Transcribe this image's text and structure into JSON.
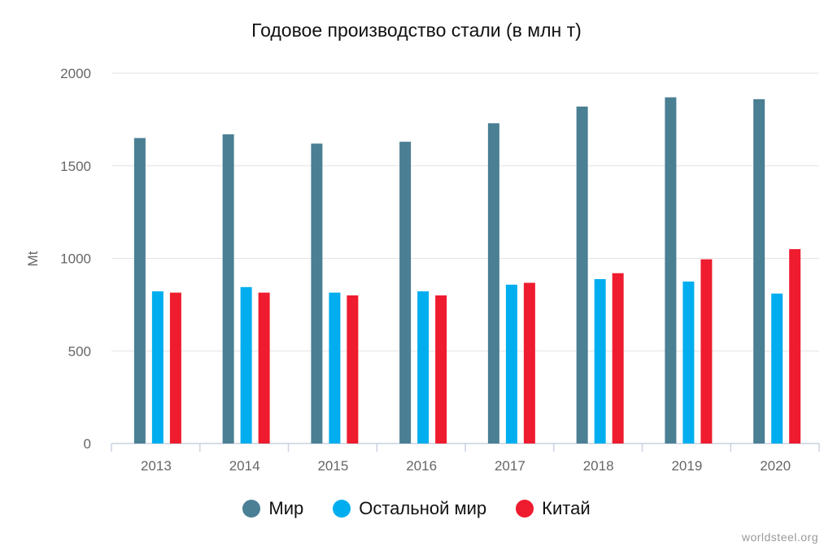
{
  "chart_data": {
    "type": "bar",
    "title": "Годовое производство стали (в млн т)",
    "xlabel": "",
    "ylabel": "Mt",
    "ylim": [
      0,
      2000
    ],
    "yticks": [
      "0",
      "500",
      "1000",
      "1500",
      "2000"
    ],
    "grid": true,
    "legend_position": "bottom-center",
    "categories": [
      "2013",
      "2014",
      "2015",
      "2016",
      "2017",
      "2018",
      "2019",
      "2020"
    ],
    "series": [
      {
        "name": "Мир",
        "color": "#4a7f94",
        "values": [
          1650,
          1670,
          1620,
          1630,
          1730,
          1820,
          1870,
          1860
        ]
      },
      {
        "name": "Остальной мир",
        "color": "#00aeef",
        "values": [
          822,
          845,
          815,
          822,
          858,
          888,
          875,
          810
        ]
      },
      {
        "name": "Китай",
        "color": "#ee1c2e",
        "values": [
          815,
          815,
          800,
          800,
          868,
          920,
          995,
          1050
        ]
      }
    ]
  },
  "credit": "worldsteel.org"
}
